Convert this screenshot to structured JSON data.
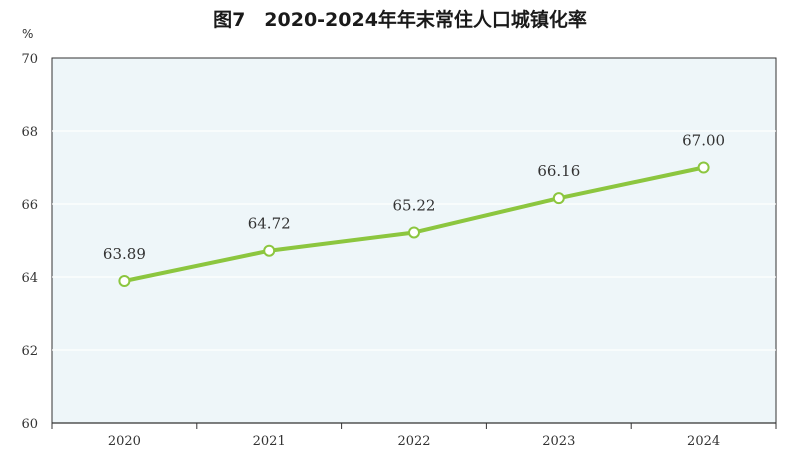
{
  "chart_data": {
    "type": "line",
    "title": "图7　2020-2024年年末常住人口城镇化率",
    "ylabel": "%",
    "xlabel": "",
    "categories": [
      "2020",
      "2021",
      "2022",
      "2023",
      "2024"
    ],
    "series": [
      {
        "values": [
          63.89,
          64.72,
          65.22,
          66.16,
          67.0
        ]
      }
    ],
    "data_labels": [
      "63.89",
      "64.72",
      "65.22",
      "66.16",
      "67.00"
    ],
    "ylim": [
      60,
      70
    ],
    "yticks": [
      "60",
      "62",
      "64",
      "66",
      "68",
      "70"
    ],
    "grid": true,
    "legend": "none",
    "colors": {
      "line": "#8cc63f",
      "plot_background": "#eef6f9",
      "grid": "#ffffff",
      "axis": "#333333"
    }
  }
}
